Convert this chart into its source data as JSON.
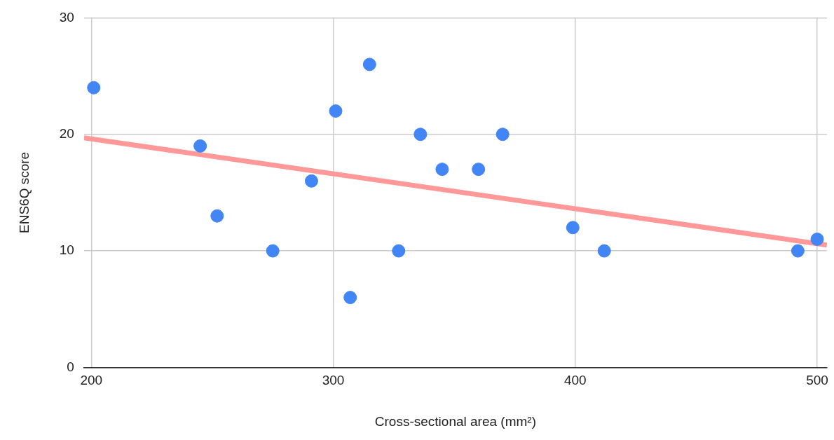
{
  "chart_data": {
    "type": "scatter",
    "xlabel": "Cross-sectional area (mm²)",
    "ylabel": "ENS6Q score",
    "xlim": [
      197,
      504
    ],
    "xticks": [
      200,
      300,
      400,
      500
    ],
    "ylim": [
      0,
      30
    ],
    "yticks": [
      0,
      10,
      20,
      30
    ],
    "grid": true,
    "legend": false,
    "series": [
      {
        "marker": "circle",
        "color": "#4285f4",
        "x": [
          201,
          245,
          252,
          275,
          291,
          301,
          307,
          315,
          327,
          336,
          345,
          360,
          370,
          399,
          412,
          492,
          500
        ],
        "values": [
          24,
          19,
          13,
          10,
          16,
          22,
          6,
          26,
          10,
          20,
          17,
          17,
          20,
          12,
          10,
          10,
          11
        ]
      },
      {
        "type": "line",
        "color": "#ff9999",
        "line_style": "solid",
        "x": [
          197,
          504
        ],
        "values": [
          19.7,
          10.5
        ]
      }
    ]
  }
}
